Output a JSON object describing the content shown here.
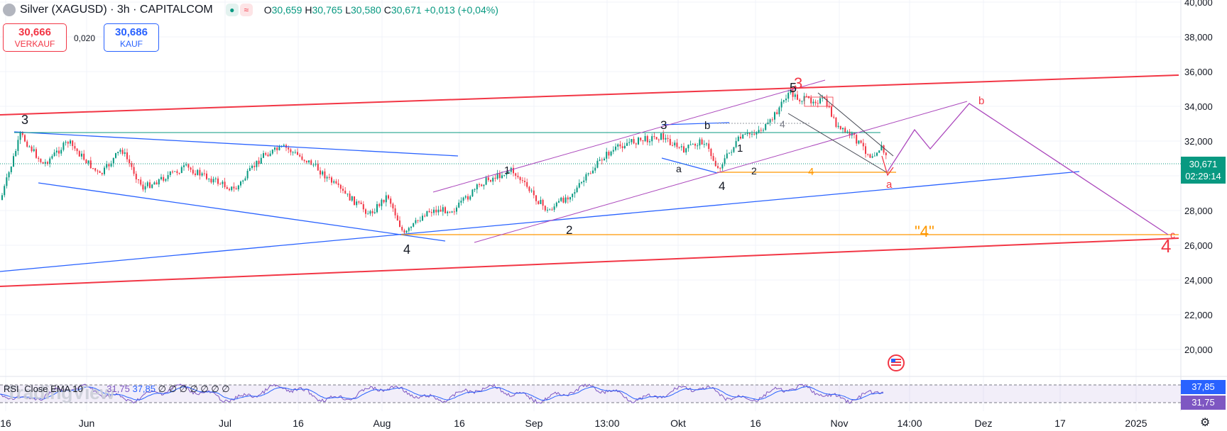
{
  "header": {
    "symbol_title": "Silver (XAGUSD) · 3h · CAPITALCOM",
    "ohlc": {
      "o_label": "O",
      "o": "30,659",
      "h_label": "H",
      "h": "30,765",
      "l_label": "L",
      "l": "30,580",
      "c_label": "C",
      "c": "30,671",
      "change": "+0,013 (+0,04%)"
    }
  },
  "trade": {
    "sell_price": "30,666",
    "sell_label": "VERKAUF",
    "buy_price": "30,686",
    "buy_label": "KAUF",
    "spread": "0,020"
  },
  "price_axis": {
    "ticks": [
      "40,000",
      "38,000",
      "36,000",
      "34,000",
      "32,000",
      "28,000",
      "26,000",
      "24,000",
      "22,000",
      "20,000"
    ],
    "current_price": "30,671",
    "countdown": "02:29:14"
  },
  "rsi_axis": {
    "value_1": "37,85",
    "value_2": "31,75"
  },
  "time_axis": {
    "labels": [
      "16",
      "Jun",
      "Jul",
      "16",
      "Aug",
      "16",
      "Sep",
      "13:00",
      "Okt",
      "16",
      "Nov",
      "14:00",
      "Dez",
      "17",
      "2025"
    ]
  },
  "rsi_pane": {
    "label": "RSI",
    "source": "Close EMA 10",
    "value_1": "31,75",
    "value_2": "37,85",
    "extras": "∅ ∅ ∅ ∅ ∅ ∅ ∅"
  },
  "annotations": {
    "wave_labels": [
      "3",
      "4",
      "1",
      "2",
      "3",
      "a",
      "b",
      "4",
      "1",
      "2",
      "5",
      "3",
      "4",
      "4",
      "a",
      "b",
      "\"4\"",
      "c",
      "4"
    ]
  },
  "watermark": "TradingView",
  "colors": {
    "up": "#089981",
    "down": "#f23645",
    "blue_line": "#2962ff",
    "purple_line": "#ab47bc",
    "orange_line": "#ff9800",
    "red_channel": "#f23645"
  }
}
